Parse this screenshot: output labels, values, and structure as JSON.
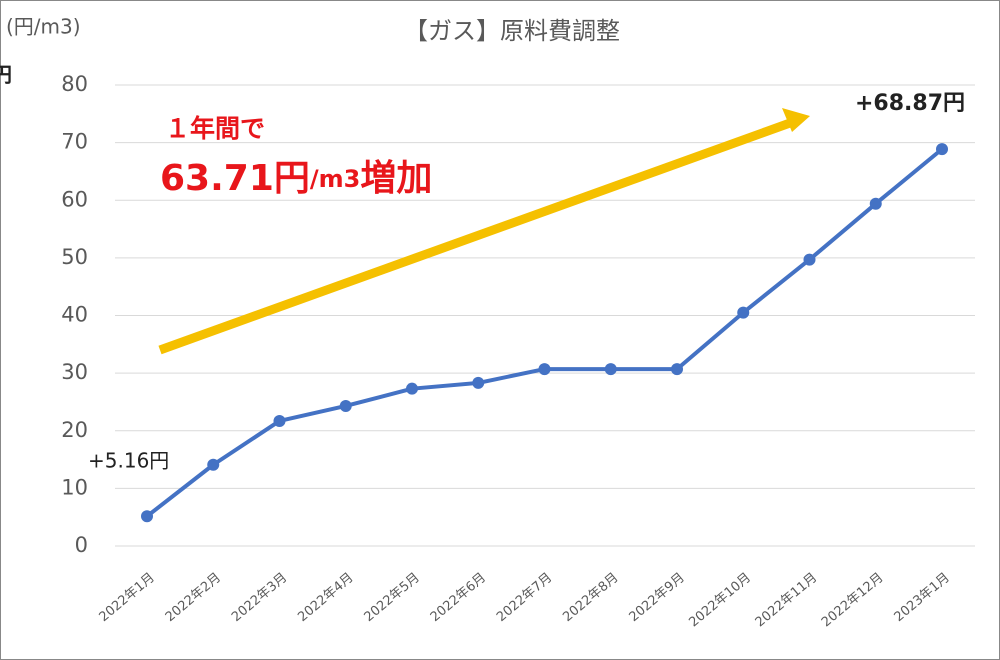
{
  "chart_data": {
    "type": "line",
    "title": "【ガス】原料費調整",
    "y_label": "(円/m3)",
    "categories": [
      "2022年1月",
      "2022年2月",
      "2022年3月",
      "2022年4月",
      "2022年5月",
      "2022年6月",
      "2022年7月",
      "2022年8月",
      "2022年9月",
      "2022年10月",
      "2022年11月",
      "2022年12月",
      "2023年1月"
    ],
    "series": [
      {
        "name": "原料費調整",
        "color": "#4472c4",
        "values": [
          5.16,
          14.1,
          21.7,
          24.3,
          27.3,
          28.3,
          30.7,
          30.7,
          30.7,
          40.5,
          49.7,
          59.4,
          68.87
        ]
      }
    ],
    "ylim": [
      0,
      80
    ],
    "yticks": [
      0,
      10,
      20,
      30,
      40,
      50,
      60,
      70,
      80
    ],
    "grid": true,
    "start_label": "+5.16円",
    "end_label": "+68.87円",
    "note_line1": "１年間で",
    "note_parts": [
      "63.71円",
      "/m3",
      "増加"
    ],
    "edge_text": "円"
  }
}
